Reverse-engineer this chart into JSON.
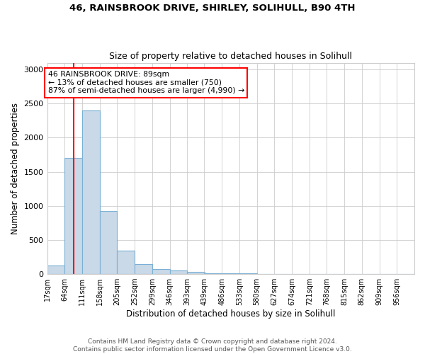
{
  "title1": "46, RAINSBROOK DRIVE, SHIRLEY, SOLIHULL, B90 4TH",
  "title2": "Size of property relative to detached houses in Solihull",
  "xlabel": "Distribution of detached houses by size in Solihull",
  "ylabel": "Number of detached properties",
  "bin_labels": [
    "17sqm",
    "64sqm",
    "111sqm",
    "158sqm",
    "205sqm",
    "252sqm",
    "299sqm",
    "346sqm",
    "393sqm",
    "439sqm",
    "486sqm",
    "533sqm",
    "580sqm",
    "627sqm",
    "674sqm",
    "721sqm",
    "768sqm",
    "815sqm",
    "862sqm",
    "909sqm",
    "956sqm"
  ],
  "bin_edges": [
    17,
    64,
    111,
    158,
    205,
    252,
    299,
    346,
    393,
    439,
    486,
    533,
    580,
    627,
    674,
    721,
    768,
    815,
    862,
    909,
    956
  ],
  "bar_heights": [
    130,
    1700,
    2400,
    930,
    340,
    145,
    75,
    50,
    30,
    15,
    10,
    8,
    5,
    5,
    4,
    3,
    2,
    2,
    1,
    1,
    0
  ],
  "bar_color": "#c9d9e8",
  "bar_edge_color": "#7ab0d4",
  "property_size": 89,
  "vline_color": "red",
  "annotation_text": "46 RAINSBROOK DRIVE: 89sqm\n← 13% of detached houses are smaller (750)\n87% of semi-detached houses are larger (4,990) →",
  "annotation_box_color": "white",
  "annotation_box_edge_color": "red",
  "ylim": [
    0,
    3100
  ],
  "yticks": [
    0,
    500,
    1000,
    1500,
    2000,
    2500,
    3000
  ],
  "footer1": "Contains HM Land Registry data © Crown copyright and database right 2024.",
  "footer2": "Contains public sector information licensed under the Open Government Licence v3.0."
}
